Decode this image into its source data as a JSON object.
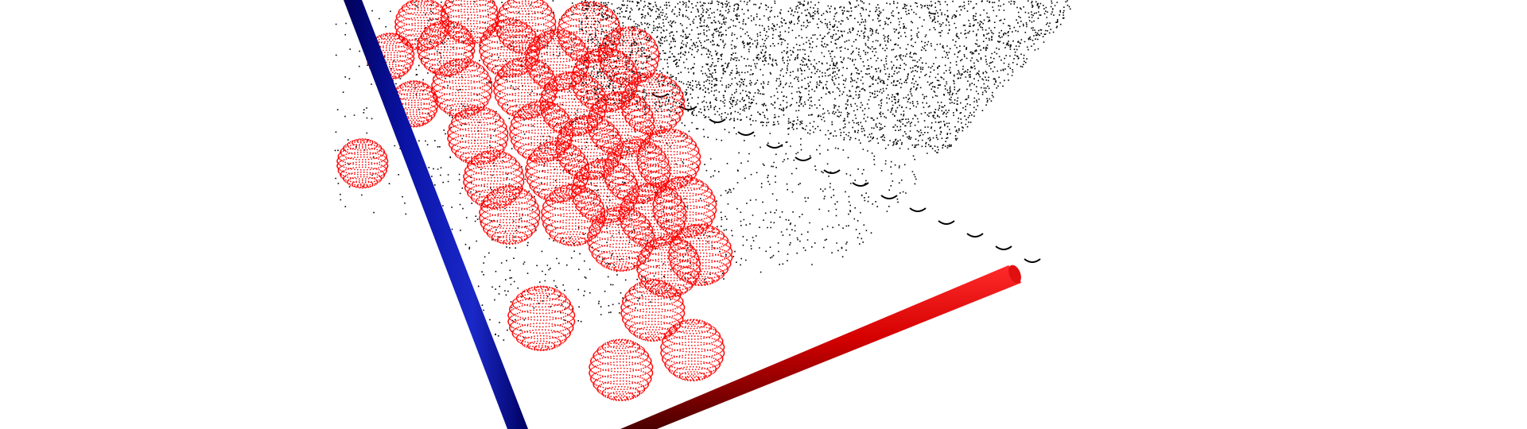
{
  "viewer": {
    "background_color": "#ffffff",
    "axes": [
      {
        "name": "blue-axis",
        "color": "#0a14a8",
        "shade": "#000050"
      },
      {
        "name": "red-axis",
        "color": "#d40000",
        "shade": "#5a0000"
      }
    ],
    "point_clouds": [
      {
        "name": "sphere-points",
        "color": "#ff0000"
      },
      {
        "name": "scene-points",
        "color": "#000000"
      }
    ]
  }
}
